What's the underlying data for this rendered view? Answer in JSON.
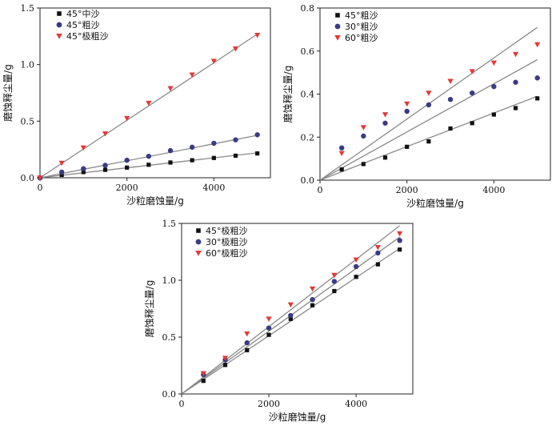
{
  "chart_data": [
    {
      "type": "scatter",
      "xlabel": "沙粒磨蚀量/g",
      "ylabel": "磨蚀释尘量/g",
      "xlim": [
        0,
        5300
      ],
      "ylim": [
        0,
        1.5
      ],
      "xticks": [
        0,
        2000,
        4000
      ],
      "yticks": [
        0.0,
        0.5,
        1.0,
        1.5
      ],
      "xtick_labels": [
        "0",
        "2000",
        "4000"
      ],
      "ytick_labels": [
        "0.0",
        "0.5",
        "1.0",
        "1.5"
      ],
      "grid": false,
      "legend_position": "top-left",
      "series": [
        {
          "name": "45°中沙",
          "marker": "square",
          "color": "#111111",
          "x": [
            0,
            500,
            1000,
            1500,
            2000,
            2500,
            3000,
            3500,
            4000,
            4500,
            5000
          ],
          "y": [
            0.0,
            0.025,
            0.05,
            0.07,
            0.09,
            0.115,
            0.135,
            0.155,
            0.175,
            0.195,
            0.215
          ],
          "fit": [
            [
              0,
              0
            ],
            [
              5000,
              0.22
            ]
          ]
        },
        {
          "name": "45°粗沙",
          "marker": "circle",
          "color": "#3b3a86",
          "x": [
            0,
            500,
            1000,
            1500,
            2000,
            2500,
            3000,
            3500,
            4000,
            4500,
            5000
          ],
          "y": [
            0.0,
            0.05,
            0.08,
            0.11,
            0.155,
            0.19,
            0.24,
            0.27,
            0.305,
            0.335,
            0.38
          ],
          "fit": [
            [
              0,
              0
            ],
            [
              5000,
              0.375
            ]
          ]
        },
        {
          "name": "45°极粗沙",
          "marker": "triangle-down",
          "color": "#e53935",
          "x": [
            0,
            500,
            1000,
            1500,
            2000,
            2500,
            3000,
            3500,
            4000,
            4500,
            5000
          ],
          "y": [
            0.0,
            0.13,
            0.265,
            0.39,
            0.525,
            0.66,
            0.79,
            0.91,
            1.03,
            1.14,
            1.26
          ],
          "fit": [
            [
              0,
              0
            ],
            [
              5000,
              1.27
            ]
          ]
        }
      ]
    },
    {
      "type": "scatter",
      "xlabel": "沙粒磨蚀量/g",
      "ylabel": "磨蚀释尘量/g",
      "xlim": [
        0,
        5300
      ],
      "ylim": [
        0,
        0.8
      ],
      "xticks": [
        0,
        2000,
        4000
      ],
      "yticks": [
        0.0,
        0.2,
        0.4,
        0.6,
        0.8
      ],
      "xtick_labels": [
        "0",
        "2000",
        "4000"
      ],
      "ytick_labels": [
        "0.0",
        "0.2",
        "0.4",
        "0.6",
        "0.8"
      ],
      "grid": false,
      "legend_position": "top-left",
      "series": [
        {
          "name": "45°粗沙",
          "marker": "square",
          "color": "#111111",
          "x": [
            500,
            1000,
            1500,
            2000,
            2500,
            3000,
            3500,
            4000,
            4500,
            5000
          ],
          "y": [
            0.05,
            0.075,
            0.105,
            0.155,
            0.18,
            0.24,
            0.265,
            0.305,
            0.335,
            0.38
          ],
          "fit": [
            [
              0,
              0
            ],
            [
              5000,
              0.39
            ]
          ]
        },
        {
          "name": "30°粗沙",
          "marker": "circle",
          "color": "#3b3a86",
          "x": [
            500,
            1000,
            1500,
            2000,
            2500,
            3000,
            3500,
            4000,
            4500,
            5000
          ],
          "y": [
            0.15,
            0.205,
            0.265,
            0.32,
            0.35,
            0.375,
            0.405,
            0.435,
            0.455,
            0.475
          ],
          "fit": [
            [
              0,
              0
            ],
            [
              5000,
              0.56
            ]
          ]
        },
        {
          "name": "60°粗沙",
          "marker": "triangle-down",
          "color": "#e53935",
          "x": [
            500,
            1000,
            1500,
            2000,
            2500,
            3000,
            3500,
            4000,
            4500,
            5000
          ],
          "y": [
            0.125,
            0.245,
            0.305,
            0.355,
            0.405,
            0.46,
            0.505,
            0.545,
            0.585,
            0.63
          ],
          "fit": [
            [
              0,
              0
            ],
            [
              5000,
              0.71
            ]
          ]
        }
      ]
    },
    {
      "type": "scatter",
      "xlabel": "沙粒磨蚀量/g",
      "ylabel": "磨蚀释尘量/g",
      "xlim": [
        0,
        5300
      ],
      "ylim": [
        0,
        1.5
      ],
      "xticks": [
        0,
        2000,
        4000
      ],
      "yticks": [
        0.0,
        0.5,
        1.0,
        1.5
      ],
      "xtick_labels": [
        "0",
        "2000",
        "4000"
      ],
      "ytick_labels": [
        "0.0",
        "0.5",
        "1.0",
        "1.5"
      ],
      "grid": false,
      "legend_position": "top-left",
      "series": [
        {
          "name": "45°极粗沙",
          "marker": "square",
          "color": "#111111",
          "x": [
            500,
            1000,
            1500,
            2000,
            2500,
            3000,
            3500,
            4000,
            4500,
            5000
          ],
          "y": [
            0.115,
            0.255,
            0.385,
            0.52,
            0.66,
            0.78,
            0.905,
            1.03,
            1.14,
            1.27
          ],
          "fit": [
            [
              0,
              0
            ],
            [
              5000,
              1.28
            ]
          ]
        },
        {
          "name": "30°极粗沙",
          "marker": "circle",
          "color": "#3b3a86",
          "x": [
            500,
            1000,
            1500,
            2000,
            2500,
            3000,
            3500,
            4000,
            4500,
            5000
          ],
          "y": [
            0.17,
            0.3,
            0.45,
            0.58,
            0.69,
            0.83,
            0.99,
            1.12,
            1.24,
            1.35
          ],
          "fit": [
            [
              0,
              0
            ],
            [
              5000,
              1.38
            ]
          ]
        },
        {
          "name": "60°极粗沙",
          "marker": "triangle-down",
          "color": "#e53935",
          "x": [
            500,
            1000,
            1500,
            2000,
            2500,
            3000,
            3500,
            4000,
            4500,
            5000
          ],
          "y": [
            0.18,
            0.315,
            0.53,
            0.66,
            0.785,
            0.925,
            1.045,
            1.18,
            1.29,
            1.41
          ],
          "fit": [
            [
              0,
              0
            ],
            [
              5000,
              1.48
            ]
          ]
        }
      ]
    }
  ]
}
